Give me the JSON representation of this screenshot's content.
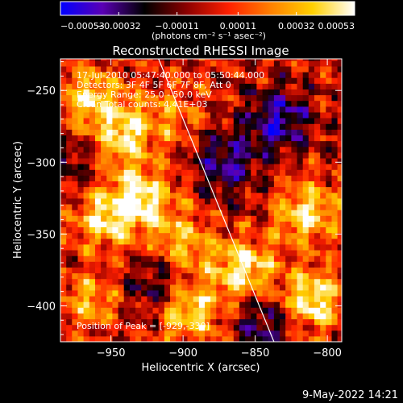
{
  "chart_data": {
    "type": "heatmap",
    "title": "Reconstructed RHESSI Image",
    "xlabel": "Heliocentric X (arcsec)",
    "ylabel": "Heliocentric Y (arcsec)",
    "xlim": [
      -985,
      -790
    ],
    "ylim": [
      -425,
      -228
    ],
    "x_ticks": [
      -950,
      -900,
      -850,
      -800
    ],
    "y_ticks": [
      -250,
      -300,
      -350,
      -400
    ],
    "x_tick_labels": [
      "−950",
      "−900",
      "−850",
      "−800"
    ],
    "y_tick_labels": [
      "−250",
      "−300",
      "−350",
      "−400"
    ],
    "colorbar": {
      "min": -0.00053,
      "max": 0.00053,
      "ticks": [
        -0.00053,
        -0.00032,
        -0.00011,
        0.00011,
        0.00032,
        0.00053
      ],
      "tick_labels": [
        "−0.00053",
        "−0.00032",
        "−0.00011",
        "0.00011",
        "0.00032",
        "0.00053"
      ],
      "units": "(photons cm⁻² s⁻¹ asec⁻²)",
      "colormap": [
        "#0000ff",
        "#5a00b4",
        "#000000",
        "#8b0000",
        "#ff2000",
        "#ff8000",
        "#ffd000",
        "#ffffff"
      ]
    },
    "limb_line": {
      "x": [
        -917,
        -837
      ],
      "y": [
        -228,
        -425
      ],
      "color": "#ffffff"
    },
    "hot_spots": [
      {
        "x": -930,
        "y": -325,
        "value": 0.00053
      },
      {
        "x": -940,
        "y": -280,
        "value": 0.00045
      },
      {
        "x": -965,
        "y": -255,
        "value": 0.0004
      },
      {
        "x": -955,
        "y": -340,
        "value": 0.00038
      },
      {
        "x": -895,
        "y": -405,
        "value": 0.00045
      },
      {
        "x": -858,
        "y": -375,
        "value": 0.0005
      },
      {
        "x": -815,
        "y": -335,
        "value": 0.00045
      },
      {
        "x": -810,
        "y": -395,
        "value": 0.0005
      },
      {
        "x": -900,
        "y": -355,
        "value": 0.00035
      },
      {
        "x": -965,
        "y": -395,
        "value": 0.0003
      },
      {
        "x": -905,
        "y": -265,
        "value": 0.00022
      }
    ],
    "cold_spots": [
      {
        "x": -835,
        "y": -270,
        "value": -0.0004
      },
      {
        "x": -870,
        "y": -300,
        "value": -0.00035
      },
      {
        "x": -845,
        "y": -410,
        "value": -0.0003
      },
      {
        "x": -920,
        "y": -385,
        "value": -0.00025
      },
      {
        "x": -980,
        "y": -300,
        "value": -0.0002
      }
    ],
    "annotations": [
      "17-Jul-2010 05:47:40.000 to 05:50:44.000",
      "Detectors: 3F 4F 5F 6F 7F 8F, Att 0",
      "Energy Range: 25.0 - 50.0 keV",
      "Clean    Total counts: 4.41E+03"
    ],
    "peak_label": "Position of Peak = [-929,-330]",
    "footer": "9-May-2022 14:21"
  }
}
